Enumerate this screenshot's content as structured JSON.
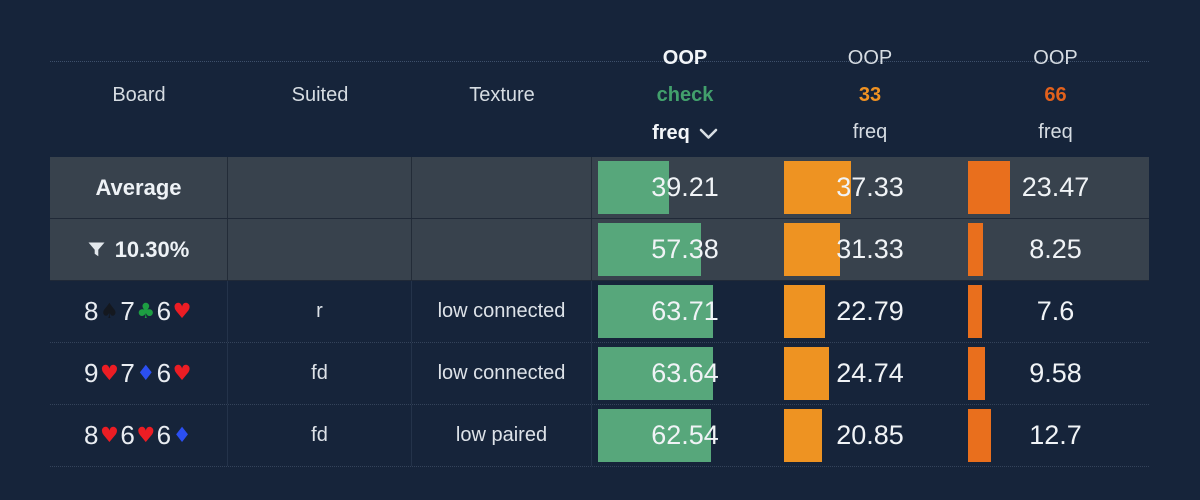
{
  "colors": {
    "page_bg": "#16243a",
    "highlight_row_bg": "#38424d",
    "check_bar": "#57a77b",
    "bet33_bar": "#ee9322",
    "bet66_bar": "#e96f1d",
    "check_accent": "#42a06c",
    "bet33_accent": "#f09222",
    "bet66_accent": "#e2611c",
    "suit_spade": "#14181f",
    "suit_club": "#1d9e42",
    "suit_heart": "#ec1d24",
    "suit_diamond": "#2b4ff2"
  },
  "icons": {
    "sort": "chevron-down-icon",
    "filter": "filter-funnel-icon"
  },
  "table": {
    "columns": [
      {
        "id": "board",
        "type": "label",
        "label": "Board"
      },
      {
        "id": "suited",
        "type": "label",
        "label": "Suited"
      },
      {
        "id": "texture",
        "type": "label",
        "label": "Texture"
      },
      {
        "id": "check",
        "type": "freq",
        "top": "OOP",
        "mid": "check",
        "bottom": "freq",
        "accent": "#42a06c",
        "bar_color": "#57a77b",
        "sorted": true
      },
      {
        "id": "bet33",
        "type": "freq",
        "top": "OOP",
        "mid": "33",
        "bottom": "freq",
        "accent": "#f09222",
        "bar_color": "#ee9322",
        "sorted": false
      },
      {
        "id": "bet66",
        "type": "freq",
        "top": "OOP",
        "mid": "66",
        "bottom": "freq",
        "accent": "#e2611c",
        "bar_color": "#e96f1d",
        "sorted": false
      }
    ],
    "summary_rows": [
      {
        "label": "Average",
        "filter_icon": false,
        "check": 39.21,
        "bet33": 37.33,
        "bet66": 23.47
      },
      {
        "label": "10.30%",
        "filter_icon": true,
        "check": 57.38,
        "bet33": 31.33,
        "bet66": 8.25
      }
    ],
    "rows": [
      {
        "board": [
          {
            "rank": "8",
            "suit": "spade"
          },
          {
            "rank": "7",
            "suit": "club"
          },
          {
            "rank": "6",
            "suit": "heart"
          }
        ],
        "suited": "r",
        "texture": "low connected",
        "check": 63.71,
        "bet33": 22.79,
        "bet66": 7.6
      },
      {
        "board": [
          {
            "rank": "9",
            "suit": "heart"
          },
          {
            "rank": "7",
            "suit": "diamond"
          },
          {
            "rank": "6",
            "suit": "heart"
          }
        ],
        "suited": "fd",
        "texture": "low connected",
        "check": 63.64,
        "bet33": 24.74,
        "bet66": 9.58
      },
      {
        "board": [
          {
            "rank": "8",
            "suit": "heart"
          },
          {
            "rank": "6",
            "suit": "heart"
          },
          {
            "rank": "6",
            "suit": "diamond"
          }
        ],
        "suited": "fd",
        "texture": "low paired",
        "check": 62.54,
        "bet33": 20.85,
        "bet66": 12.7
      }
    ]
  }
}
